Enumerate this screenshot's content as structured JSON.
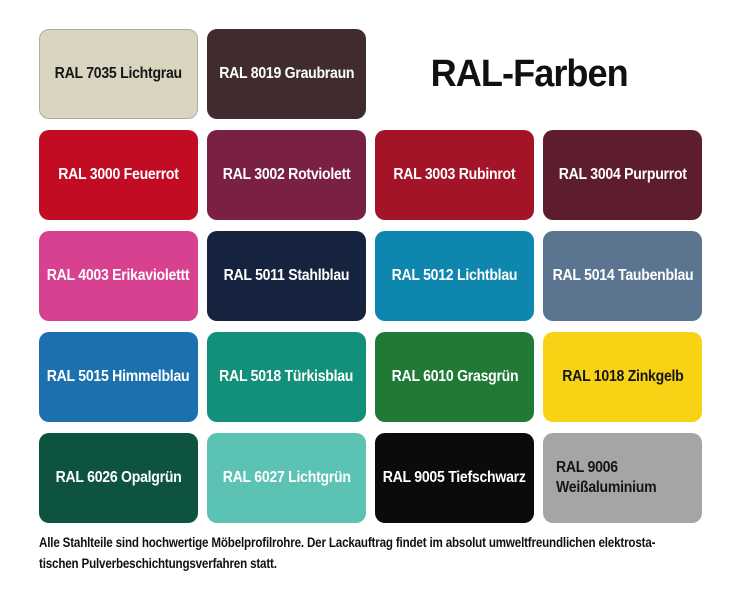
{
  "title": "RAL-Farben",
  "swatches": [
    {
      "ral": "ral-7035",
      "label": "RAL 7035 Lichtgrau",
      "color": "#DAD5C0",
      "text_color": "#161616",
      "border_color": "#ADADA0"
    },
    {
      "ral": "ral-8019",
      "label": "RAL 8019 Graubraun",
      "color": "#402B2F",
      "text_color": "#FFFFFF"
    },
    {
      "ral": "ral-3000",
      "label": "RAL 3000 Feuerrot",
      "color": "#C10C24",
      "text_color": "#FFFFFF"
    },
    {
      "ral": "ral-3002",
      "label": "RAL 3002 Rotviolett",
      "color": "#7A2044",
      "text_color": "#FFFFFF"
    },
    {
      "ral": "ral-3003",
      "label": "RAL 3003 Rubinrot",
      "color": "#A31428",
      "text_color": "#FFFFFF"
    },
    {
      "ral": "ral-3004",
      "label": "RAL 3004 Purpurrot",
      "color": "#5D1D2E",
      "text_color": "#FFFFFF"
    },
    {
      "ral": "ral-4003",
      "label": "RAL 4003 Erikaviolettt",
      "color": "#D7418F",
      "text_color": "#FFFFFF"
    },
    {
      "ral": "ral-5011",
      "label": "RAL 5011 Stahlblau",
      "color": "#15233E",
      "text_color": "#FFFFFF"
    },
    {
      "ral": "ral-5012",
      "label": "RAL 5012 Lichtblau",
      "color": "#0E86AE",
      "text_color": "#FFFFFF"
    },
    {
      "ral": "ral-5014",
      "label": "RAL 5014 Taubenblau",
      "color": "#5B7591",
      "text_color": "#FFFFFF"
    },
    {
      "ral": "ral-5015",
      "label": "RAL 5015 Himmelblau",
      "color": "#1C70AE",
      "text_color": "#FFFFFF"
    },
    {
      "ral": "ral-5018",
      "label": "RAL 5018 Türkisblau",
      "color": "#12907A",
      "text_color": "#FFFFFF"
    },
    {
      "ral": "ral-6010",
      "label": "RAL 6010 Grasgrün",
      "color": "#207A35",
      "text_color": "#FFFFFF"
    },
    {
      "ral": "ral-1018",
      "label": "RAL 1018 Zinkgelb",
      "color": "#F8D315",
      "text_color": "#161616"
    },
    {
      "ral": "ral-6026",
      "label": "RAL 6026 Opalgrün",
      "color": "#0E5340",
      "text_color": "#FFFFFF"
    },
    {
      "ral": "ral-6027",
      "label": "RAL 6027 Lichtgrün",
      "color": "#5BC2B4",
      "text_color": "#FFFFFF"
    },
    {
      "ral": "ral-9005",
      "label": "RAL 9005 Tiefschwarz",
      "color": "#0B0B0B",
      "text_color": "#FFFFFF"
    },
    {
      "ral": "ral-9006",
      "label": "RAL 9006\nWeißaluminium",
      "color": "#A5A5A5",
      "text_color": "#161616",
      "multiline": true
    }
  ],
  "footer": {
    "line1": "Alle Stahlteile sind hochwertige Möbelprofilrohre. Der Lackauftrag findet im absolut umweltfreundlichen elektrosta-",
    "line2": "tischen Pulverbeschichtungsverfahren statt."
  }
}
